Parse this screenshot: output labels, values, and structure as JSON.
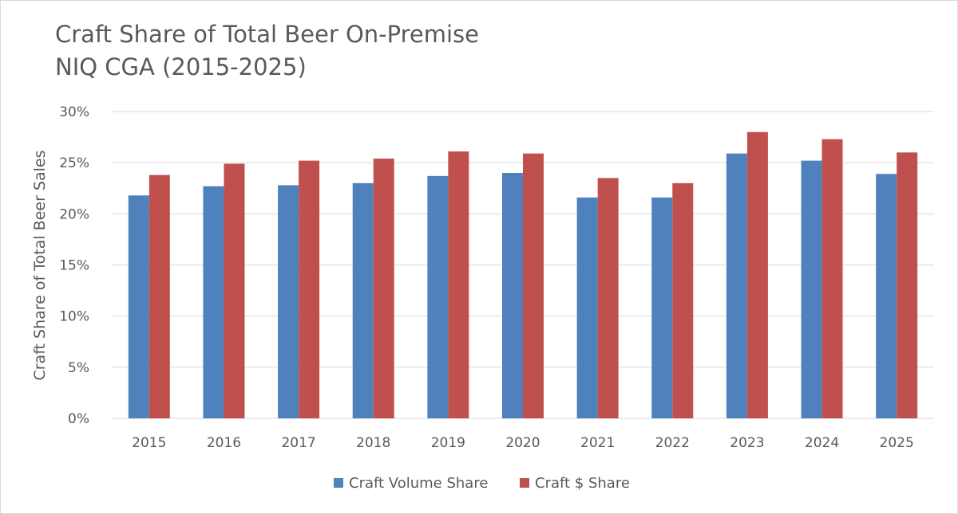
{
  "chart_data": {
    "type": "bar",
    "title": "Craft Share of Total Beer On-Premise",
    "subtitle": "NIQ CGA (2015-2025)",
    "ylabel": "Craft Share of Total Beer Sales",
    "xlabel": "",
    "categories": [
      "2015",
      "2016",
      "2017",
      "2018",
      "2019",
      "2020",
      "2021",
      "2022",
      "2023",
      "2024",
      "2025"
    ],
    "series": [
      {
        "name": "Craft Volume Share",
        "color": "#4f81bd",
        "values": [
          21.8,
          22.7,
          22.8,
          23.0,
          23.7,
          24.0,
          21.6,
          21.6,
          25.9,
          25.2,
          23.9
        ]
      },
      {
        "name": "Craft $ Share",
        "color": "#c0504d",
        "values": [
          23.8,
          24.9,
          25.2,
          25.4,
          26.1,
          25.9,
          23.5,
          23.0,
          28.0,
          27.3,
          26.0
        ]
      }
    ],
    "ylim": [
      0,
      30
    ],
    "yticks": [
      "0%",
      "5%",
      "10%",
      "15%",
      "20%",
      "25%",
      "30%"
    ],
    "ytick_values": [
      0,
      5,
      10,
      15,
      20,
      25,
      30
    ],
    "grid": true,
    "legend_position": "bottom-center"
  }
}
